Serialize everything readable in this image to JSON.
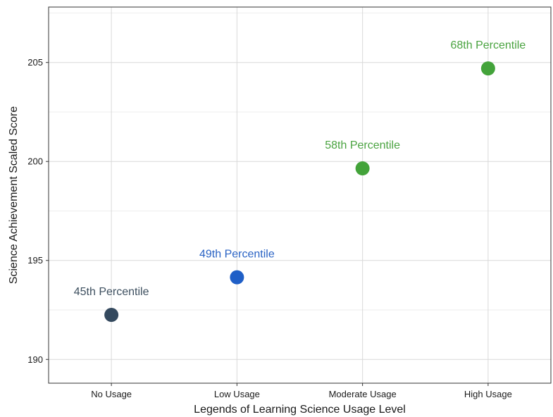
{
  "chart_data": {
    "type": "scatter",
    "title": "",
    "xlabel": "Legends of Learning Science Usage Level",
    "ylabel": "Science Achievement Scaled Score",
    "categories": [
      "No Usage",
      "Low Usage",
      "Moderate Usage",
      "High Usage"
    ],
    "values": [
      192.25,
      194.15,
      199.65,
      204.7
    ],
    "labels": [
      "45th Percentile",
      "49th Percentile",
      "58th Percentile",
      "68th Percentile"
    ],
    "colors": [
      "#34495e",
      "#1f5fc7",
      "#43a33a",
      "#43a33a"
    ],
    "label_colors": [
      "#3d4f5f",
      "#2a63c4",
      "#4aa340",
      "#4aa340"
    ],
    "ylim": [
      188.8,
      207.8
    ],
    "yticks": [
      190,
      195,
      200,
      205
    ],
    "grid": true,
    "legend": "none"
  }
}
